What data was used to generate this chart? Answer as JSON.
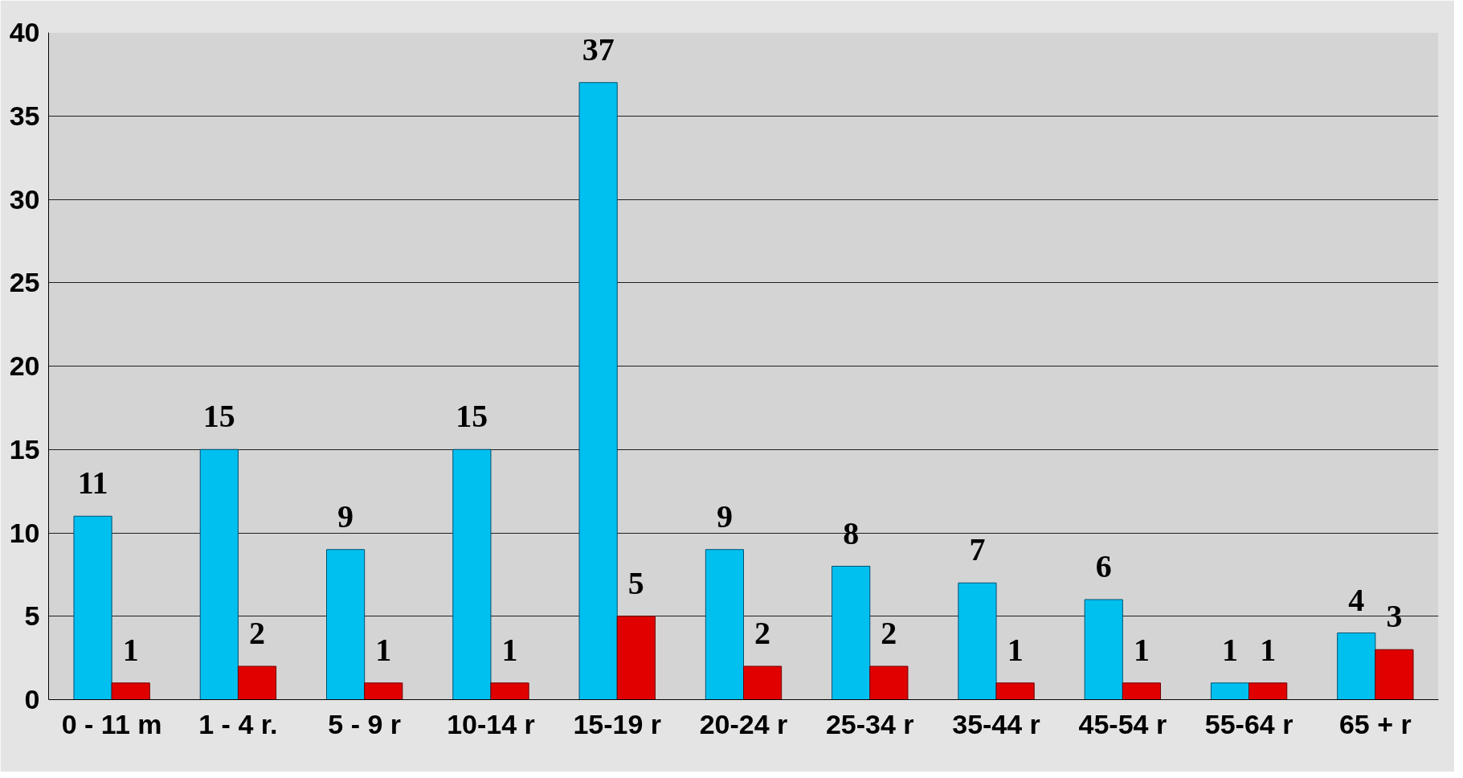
{
  "chart_data": {
    "type": "bar",
    "categories": [
      "0 - 11 m",
      "1 - 4 r.",
      "5 - 9 r",
      "10-14 r",
      "15-19 r",
      "20-24 r",
      "25-34 r",
      "35-44 r",
      "45-54 r",
      "55-64 r",
      "65 + r"
    ],
    "series": [
      {
        "color": "#00c0f0",
        "values": [
          11,
          15,
          9,
          15,
          37,
          9,
          8,
          7,
          6,
          1,
          4
        ]
      },
      {
        "color": "#e00000",
        "values": [
          1,
          2,
          1,
          1,
          5,
          2,
          2,
          1,
          1,
          1,
          3
        ]
      }
    ],
    "ylim": [
      0,
      40
    ],
    "yticks": [
      0,
      5,
      10,
      15,
      20,
      25,
      30,
      35,
      40
    ],
    "grid": "y",
    "data_labels": true
  }
}
